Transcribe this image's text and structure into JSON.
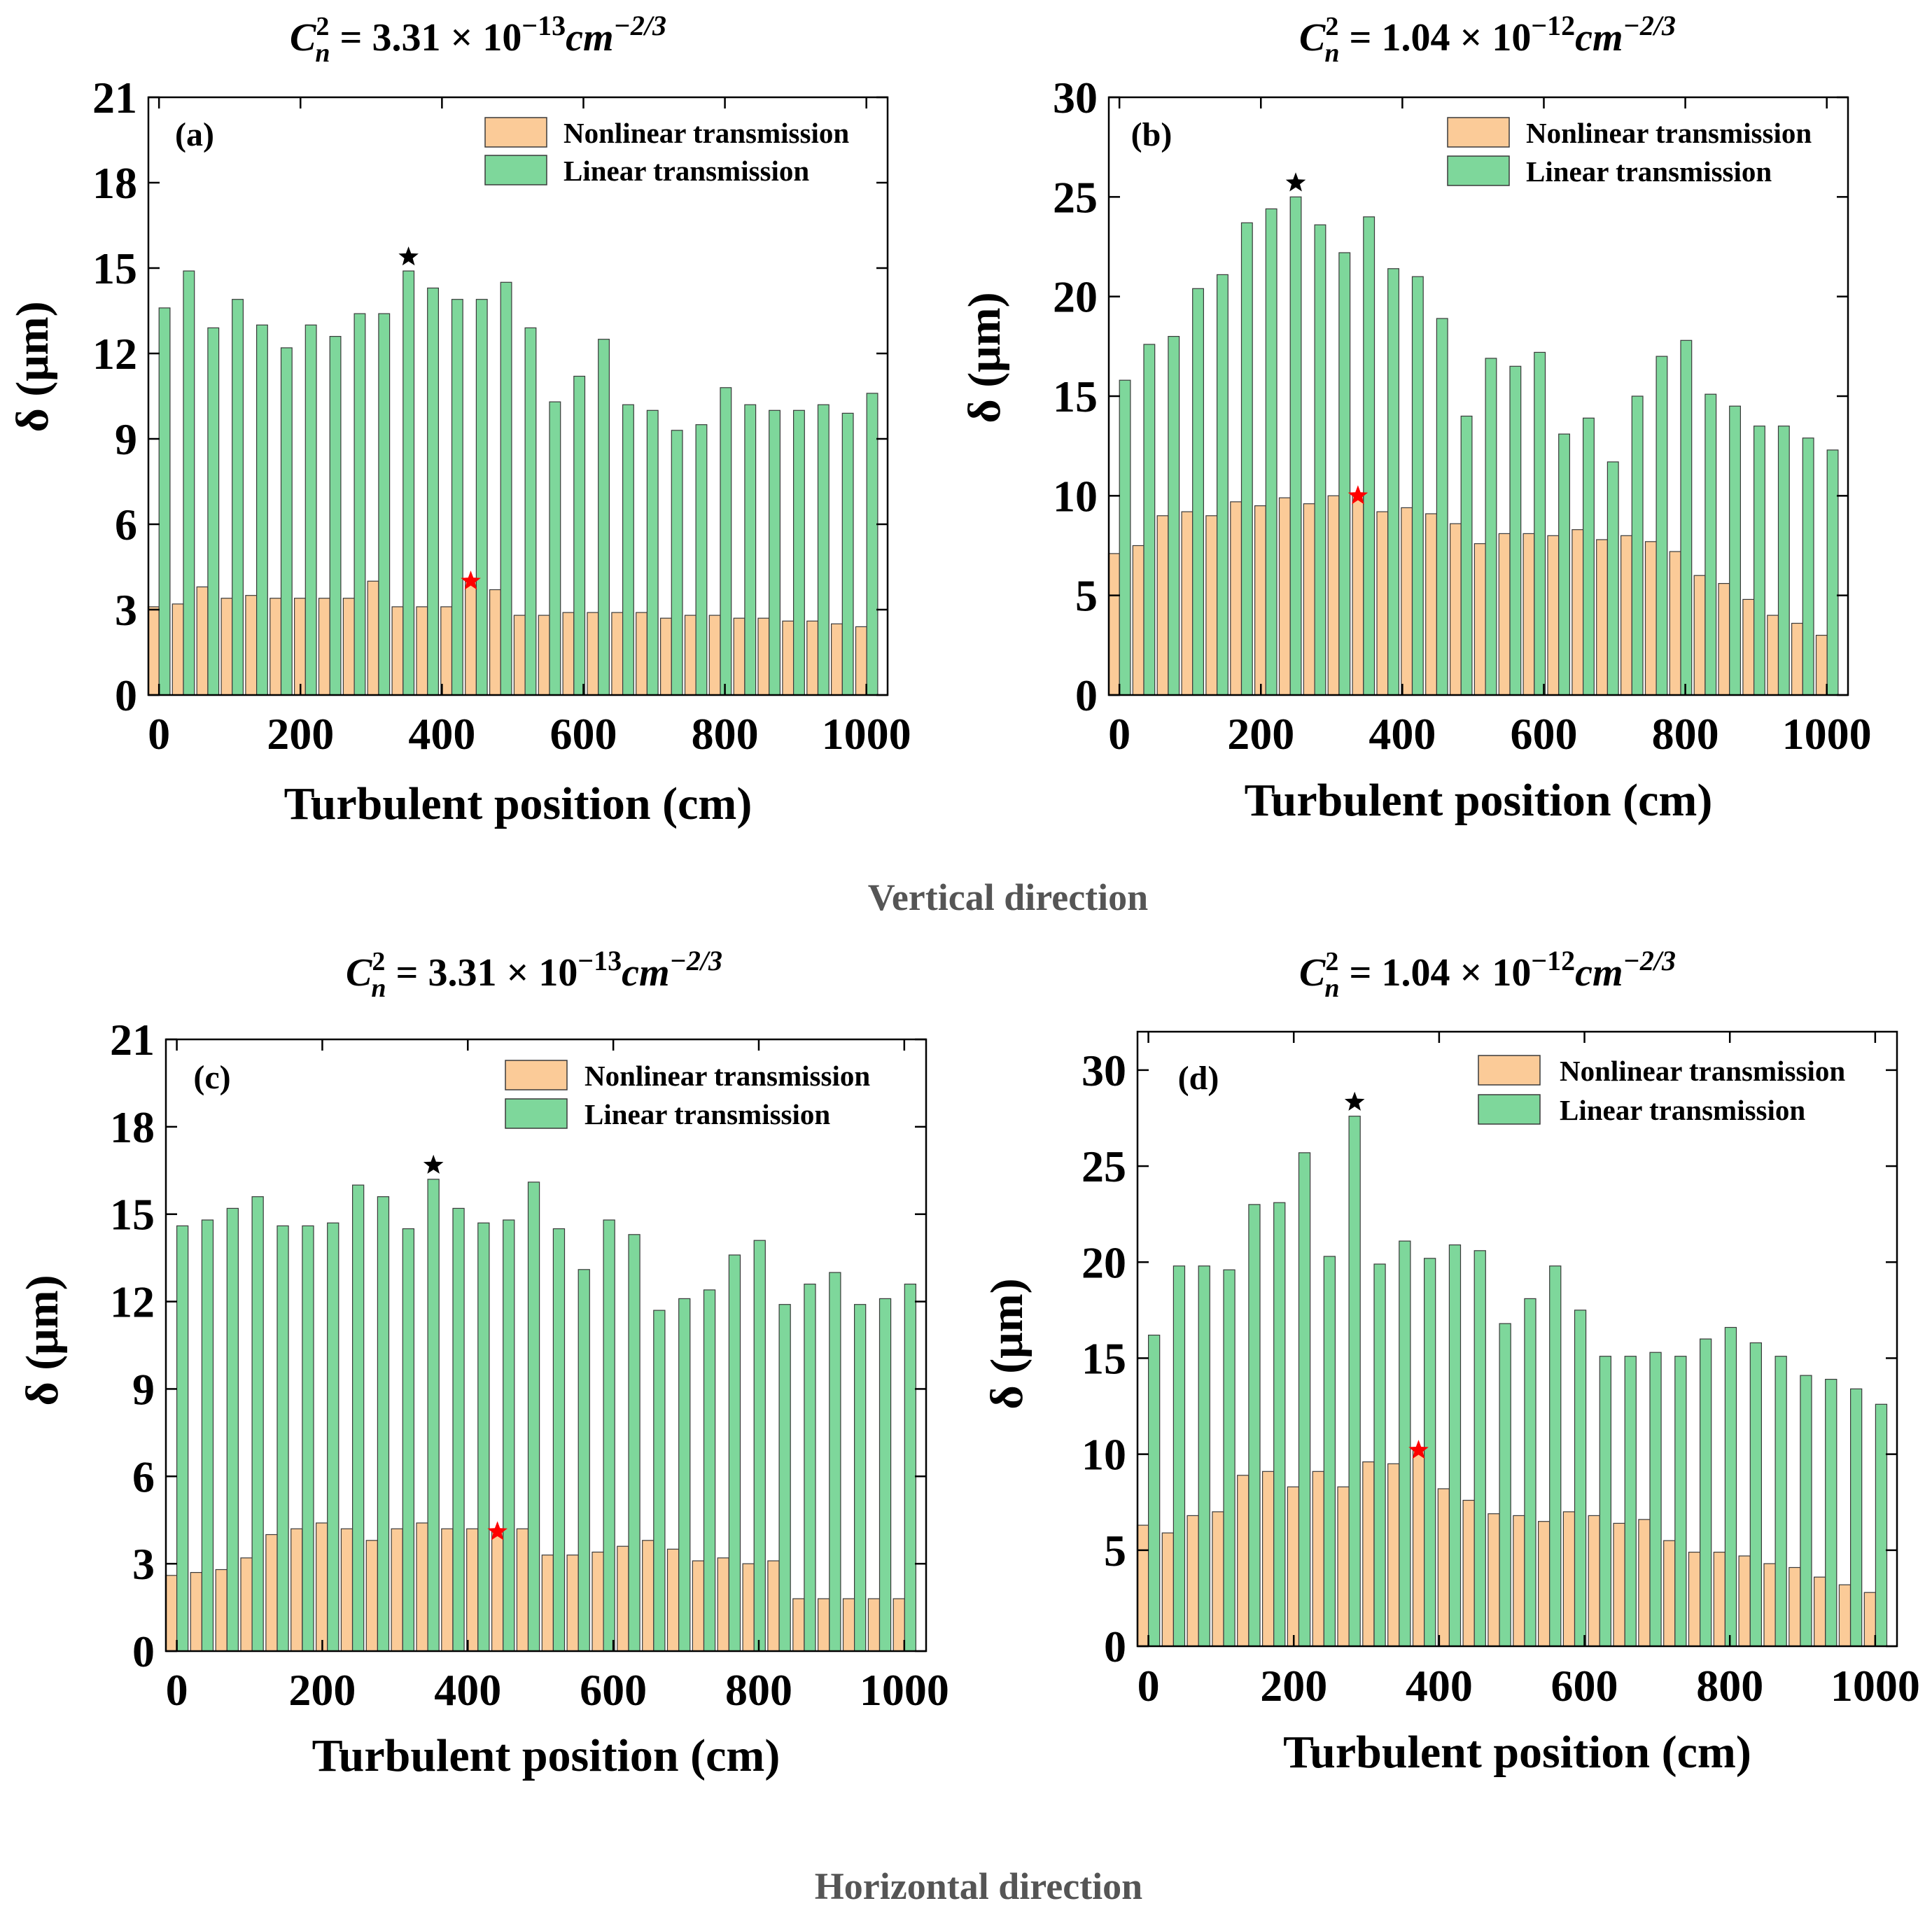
{
  "figure": {
    "sections": [
      "Vertical direction",
      "Horizontal direction"
    ]
  },
  "legend": {
    "nonlinear": "Nonlinear transmission",
    "linear": "Linear transmission"
  },
  "colors": {
    "nonlinear": "#FBCB98",
    "linear": "#7ED79B",
    "bar_edge": "#3a3a3a",
    "star_linear": "#000000",
    "star_nonlinear": "#ff0000"
  },
  "chart_data": [
    {
      "panel": "(a)",
      "type": "bar",
      "title": {
        "c": "C",
        "sup": "2",
        "sub": "n",
        "rest": " = 3.31 × 10",
        "exp": "−13",
        "unit": "cm",
        "uexp": "−2/3"
      },
      "xlabel": "Turbulent position (cm)",
      "ylabel": "δ (μm)",
      "xlim": [
        -15,
        1030
      ],
      "ylim": [
        0,
        21
      ],
      "xticks": [
        0,
        200,
        400,
        600,
        800,
        1000
      ],
      "yticks": [
        0,
        3,
        6,
        9,
        12,
        15,
        18,
        21
      ],
      "x_start": 0,
      "x_step": 34.5,
      "series": [
        {
          "name": "Nonlinear transmission",
          "values": [
            3.1,
            3.2,
            3.8,
            3.4,
            3.5,
            3.4,
            3.4,
            3.4,
            3.4,
            4.0,
            3.1,
            3.1,
            3.1,
            4.0,
            3.7,
            2.8,
            2.8,
            2.9,
            2.9,
            2.9,
            2.9,
            2.7,
            2.8,
            2.8,
            2.7,
            2.7,
            2.6,
            2.6,
            2.5,
            2.4
          ]
        },
        {
          "name": "Linear transmission",
          "values": [
            13.6,
            14.9,
            12.9,
            13.9,
            13.0,
            12.2,
            13.0,
            12.6,
            13.4,
            13.4,
            14.9,
            14.3,
            13.9,
            13.9,
            14.5,
            12.9,
            10.3,
            11.2,
            12.5,
            10.2,
            10.0,
            9.3,
            9.5,
            10.8,
            10.2,
            10.0,
            10.0,
            10.2,
            9.9,
            10.6
          ]
        }
      ],
      "star_linear_index": 10,
      "star_nonlinear_index": 13
    },
    {
      "panel": "(b)",
      "type": "bar",
      "title": {
        "c": "C",
        "sup": "2",
        "sub": "n",
        "rest": " = 1.04 × 10",
        "exp": "−12",
        "unit": "cm",
        "uexp": "−2/3"
      },
      "xlabel": "Turbulent position (cm)",
      "ylabel": "δ (μm)",
      "xlim": [
        -15,
        1030
      ],
      "ylim": [
        0,
        30
      ],
      "xticks": [
        0,
        200,
        400,
        600,
        800,
        1000
      ],
      "yticks": [
        0,
        5,
        10,
        15,
        20,
        25,
        30
      ],
      "x_start": 0,
      "x_step": 34.5,
      "series": [
        {
          "name": "Nonlinear transmission",
          "values": [
            7.1,
            7.5,
            9.0,
            9.2,
            9.0,
            9.7,
            9.5,
            9.9,
            9.6,
            10.0,
            10.0,
            9.2,
            9.4,
            9.1,
            8.6,
            7.6,
            8.1,
            8.1,
            8.0,
            8.3,
            7.8,
            8.0,
            7.7,
            7.2,
            6.0,
            5.6,
            4.8,
            4.0,
            3.6,
            3.0
          ]
        },
        {
          "name": "Linear transmission",
          "values": [
            15.8,
            17.6,
            18.0,
            20.4,
            21.1,
            23.7,
            24.4,
            25.0,
            23.6,
            22.2,
            24.0,
            21.4,
            21.0,
            18.9,
            14.0,
            16.9,
            16.5,
            17.2,
            13.1,
            13.9,
            11.7,
            15.0,
            17.0,
            17.8,
            15.1,
            14.5,
            13.5,
            13.5,
            12.9,
            12.3
          ]
        }
      ],
      "star_linear_index": 7,
      "star_nonlinear_index": 10
    },
    {
      "panel": "(c)",
      "type": "bar",
      "title": {
        "c": "C",
        "sup": "2",
        "sub": "n",
        "rest": " = 3.31 × 10",
        "exp": "−13",
        "unit": "cm",
        "uexp": "−2/3"
      },
      "xlabel": "Turbulent position (cm)",
      "ylabel": "δ (μm)",
      "xlim": [
        -15,
        1030
      ],
      "ylim": [
        0,
        21
      ],
      "xticks": [
        0,
        200,
        400,
        600,
        800,
        1000
      ],
      "yticks": [
        0,
        3,
        6,
        9,
        12,
        15,
        18,
        21
      ],
      "x_start": 0,
      "x_step": 34.5,
      "series": [
        {
          "name": "Nonlinear transmission",
          "values": [
            2.6,
            2.7,
            2.8,
            3.2,
            4.0,
            4.2,
            4.4,
            4.2,
            3.8,
            4.2,
            4.4,
            4.2,
            4.2,
            4.1,
            4.2,
            3.3,
            3.3,
            3.4,
            3.6,
            3.8,
            3.5,
            3.1,
            3.2,
            3.0,
            3.1,
            1.8,
            1.8,
            1.8,
            1.8,
            1.8
          ]
        },
        {
          "name": "Linear transmission",
          "values": [
            14.6,
            14.8,
            15.2,
            15.6,
            14.6,
            14.6,
            14.7,
            16.0,
            15.6,
            14.5,
            16.2,
            15.2,
            14.7,
            14.8,
            16.1,
            14.5,
            13.1,
            14.8,
            14.3,
            11.7,
            12.1,
            12.4,
            13.6,
            14.1,
            11.9,
            12.6,
            13.0,
            11.9,
            12.1,
            12.6
          ]
        }
      ],
      "star_linear_index": 10,
      "star_nonlinear_index": 13
    },
    {
      "panel": "(d)",
      "type": "bar",
      "title": {
        "c": "C",
        "sup": "2",
        "sub": "n",
        "rest": " = 1.04 × 10",
        "exp": "−12",
        "unit": "cm",
        "uexp": "−2/3"
      },
      "xlabel": "Turbulent position (cm)",
      "ylabel": "δ (μm)",
      "xlim": [
        -15,
        1030
      ],
      "ylim": [
        0,
        32
      ],
      "xticks": [
        0,
        200,
        400,
        600,
        800,
        1000
      ],
      "yticks": [
        0,
        5,
        10,
        15,
        20,
        25,
        30
      ],
      "x_start": 0,
      "x_step": 34.5,
      "series": [
        {
          "name": "Nonlinear transmission",
          "values": [
            6.3,
            5.9,
            6.8,
            7.0,
            8.9,
            9.1,
            8.3,
            9.1,
            8.3,
            9.6,
            9.5,
            10.2,
            8.2,
            7.6,
            6.9,
            6.8,
            6.5,
            7.0,
            6.8,
            6.4,
            6.6,
            5.5,
            4.9,
            4.9,
            4.7,
            4.3,
            4.1,
            3.6,
            3.2,
            2.8
          ]
        },
        {
          "name": "Linear transmission",
          "values": [
            16.2,
            19.8,
            19.8,
            19.6,
            23.0,
            23.1,
            25.7,
            20.3,
            27.6,
            19.9,
            21.1,
            20.2,
            20.9,
            20.6,
            16.8,
            18.1,
            19.8,
            17.5,
            15.1,
            15.1,
            15.3,
            15.1,
            16.0,
            16.6,
            15.8,
            15.1,
            14.1,
            13.9,
            13.4,
            12.6
          ]
        }
      ],
      "star_linear_index": 8,
      "star_nonlinear_index": 11
    }
  ]
}
